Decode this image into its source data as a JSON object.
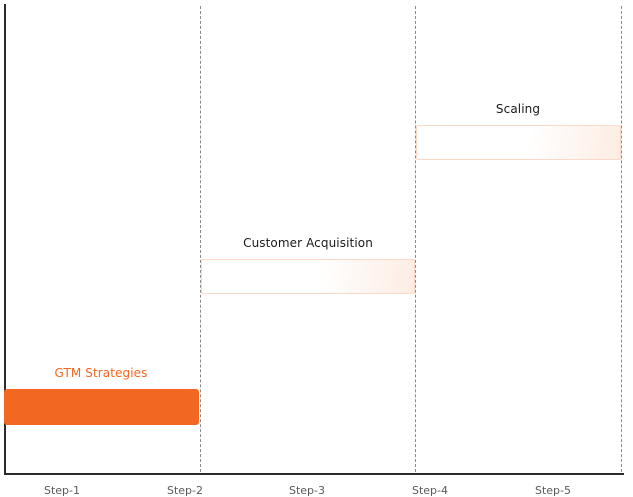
{
  "steps": [
    "Step-1",
    "Step-2",
    "Step-3",
    "Step-4",
    "Step-5"
  ],
  "phases": [
    {
      "label": "GTM Strategies",
      "status": "active",
      "color": "#f26722"
    },
    {
      "label": "Customer Acquisition",
      "status": "pending",
      "color": "#1a1a1a"
    },
    {
      "label": "Scaling",
      "status": "pending",
      "color": "#1a1a1a"
    }
  ]
}
